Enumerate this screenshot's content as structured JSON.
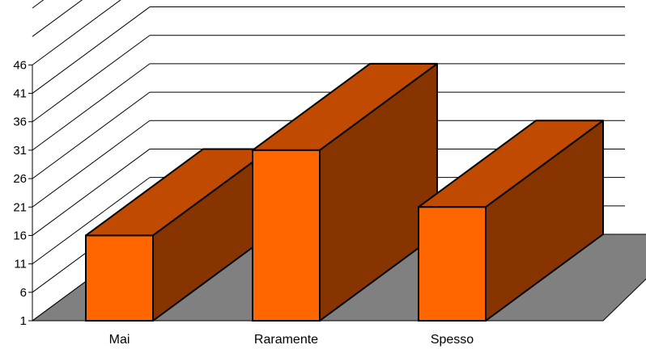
{
  "chart_data": {
    "type": "bar",
    "categories": [
      "Mai",
      "Raramente",
      "Spesso"
    ],
    "values": [
      16,
      31,
      21
    ],
    "yticks": [
      1,
      6,
      11,
      16,
      21,
      26,
      31,
      36,
      41,
      46
    ],
    "ylim": [
      1,
      56
    ],
    "grid": true,
    "three_d": true,
    "legend": "none",
    "colors": {
      "bar_front": "#FF6600",
      "bar_top": "#C04A00",
      "bar_side": "#873400",
      "floor": "#808080",
      "gridline": "#000000"
    }
  }
}
